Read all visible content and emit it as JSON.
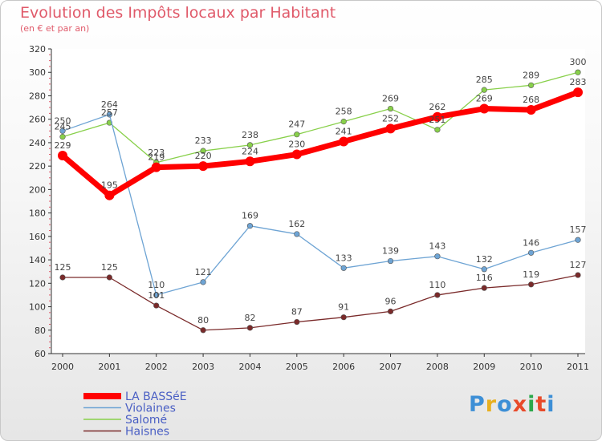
{
  "title": "Evolution des Impôts locaux par Habitant",
  "subtitle": "(en € et par an)",
  "logo": "Proxiti",
  "chart_data": {
    "type": "line",
    "title": "Evolution des Impôts locaux par Habitant",
    "ylabel": "(en € et par an)",
    "categories": [
      "2000",
      "2001",
      "2002",
      "2003",
      "2004",
      "2005",
      "2006",
      "2007",
      "2008",
      "2009",
      "2010",
      "2011"
    ],
    "ylim": [
      60,
      320
    ],
    "yticks": [
      60,
      80,
      100,
      120,
      140,
      160,
      180,
      200,
      220,
      240,
      260,
      280,
      300,
      320
    ],
    "series": [
      {
        "name": "Salomé",
        "color": "#88d04a",
        "values": [
          245,
          257,
          223,
          233,
          238,
          247,
          258,
          269,
          251,
          285,
          289,
          300
        ],
        "labels": [
          "245",
          "257",
          "223",
          "233",
          "238",
          "247",
          "258",
          "269",
          "251",
          "285",
          "289",
          "300"
        ]
      },
      {
        "name": "Violaines",
        "color": "#6ea4d4",
        "values": [
          250,
          264,
          110,
          121,
          169,
          162,
          133,
          139,
          143,
          132,
          146,
          157
        ],
        "labels": [
          "250",
          "264",
          "110",
          "121",
          "169",
          "162",
          "133",
          "139",
          "143",
          "132",
          "146",
          "157"
        ]
      },
      {
        "name": "Haisnes",
        "color": "#7a2a2a",
        "values": [
          125,
          125,
          101,
          80,
          82,
          87,
          91,
          96,
          110,
          116,
          119,
          127
        ],
        "labels": [
          "125",
          "125",
          "101",
          "80",
          "82",
          "87",
          "91",
          "96",
          "110",
          "116",
          "119",
          "127"
        ]
      },
      {
        "name": "LA BASSéE",
        "color": "#ff0000",
        "values": [
          229,
          195,
          219,
          220,
          224,
          230,
          241,
          252,
          262,
          269,
          268,
          283
        ],
        "labels": [
          "229",
          "195",
          "219",
          "220",
          "224",
          "230",
          "241",
          "252",
          "262",
          "269",
          "268",
          "283"
        ]
      }
    ],
    "legend": [
      "LA BASSéE",
      "Violaines",
      "Salomé",
      "Haisnes"
    ],
    "legend_position": "bottom-left",
    "grid": false
  }
}
